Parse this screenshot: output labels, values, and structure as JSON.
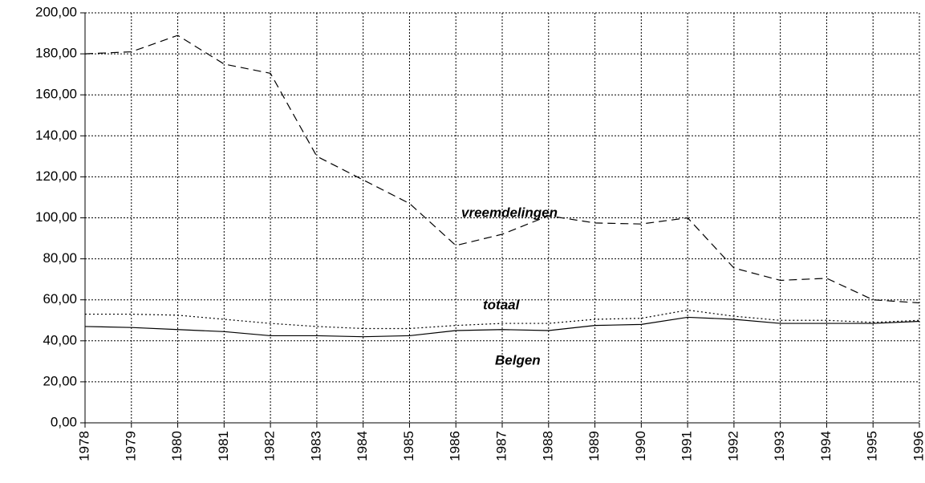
{
  "chart_data": {
    "type": "line",
    "x": [
      1978,
      1979,
      1980,
      1981,
      1982,
      1983,
      1984,
      1985,
      1986,
      1987,
      1988,
      1989,
      1990,
      1991,
      1992,
      1993,
      1994,
      1995,
      1996
    ],
    "xlim": [
      1978,
      1996
    ],
    "xticks": [
      1978,
      1979,
      1980,
      1981,
      1982,
      1983,
      1984,
      1985,
      1986,
      1987,
      1988,
      1989,
      1990,
      1991,
      1992,
      1993,
      1994,
      1995,
      1996
    ],
    "ylim": [
      0,
      200
    ],
    "yticks": [
      {
        "value": 0,
        "label": "0,00"
      },
      {
        "value": 20,
        "label": "20,00"
      },
      {
        "value": 40,
        "label": "40,00"
      },
      {
        "value": 60,
        "label": "60,00"
      },
      {
        "value": 80,
        "label": "80,00"
      },
      {
        "value": 100,
        "label": "100,00"
      },
      {
        "value": 120,
        "label": "120,00"
      },
      {
        "value": 140,
        "label": "140,00"
      },
      {
        "value": 160,
        "label": "160,00"
      },
      {
        "value": 180,
        "label": "180,00"
      },
      {
        "value": 200,
        "label": "200,00"
      }
    ],
    "grid": true,
    "series": [
      {
        "name": "vreemdelingen",
        "color": "#000000",
        "dash": "dashed",
        "values": [
          180,
          181,
          189,
          175,
          170.5,
          130,
          118.5,
          107,
          86.5,
          92,
          101,
          97.5,
          97,
          100,
          75.5,
          69.5,
          70.5,
          60,
          58.5
        ]
      },
      {
        "name": "totaal",
        "color": "#000000",
        "dash": "dotted",
        "values": [
          53,
          53,
          52.5,
          50.5,
          48.5,
          47,
          46,
          46,
          47.5,
          48.5,
          48.5,
          50.5,
          51,
          55,
          52,
          50,
          50,
          49,
          50
        ]
      },
      {
        "name": "Belgen",
        "color": "#000000",
        "dash": "solid",
        "values": [
          47,
          46.5,
          45.5,
          44.5,
          42.5,
          42.5,
          42,
          42.5,
          45,
          45.5,
          45,
          47.5,
          48,
          51.5,
          50.5,
          48.5,
          48.5,
          48.5,
          49.5
        ]
      }
    ]
  }
}
